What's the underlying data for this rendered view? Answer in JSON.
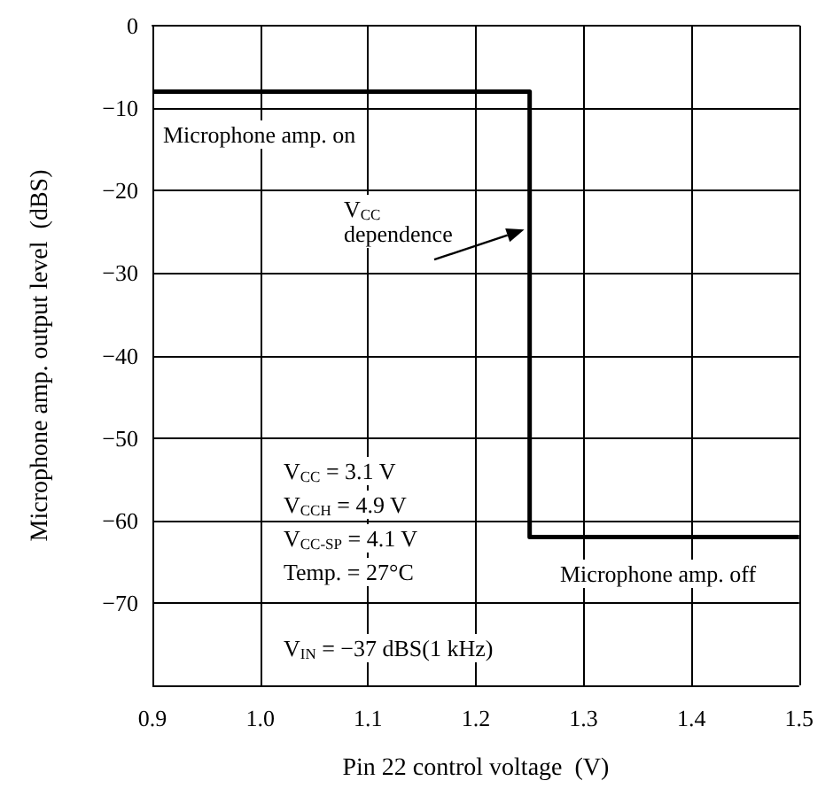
{
  "chart_data": {
    "type": "step",
    "xlabel": "Pin 22 control voltage  (V)",
    "ylabel": "Microphone amp. output level  (dBS)",
    "series": [
      {
        "x": [
          0.9,
          1.25,
          1.5
        ],
        "values": [
          -8,
          -62,
          -62
        ],
        "color": "#000000"
      }
    ],
    "xlim": [
      0.9,
      1.5
    ],
    "xticks": [
      0.9,
      {
        "value": 1,
        "label": "1.0"
      },
      1.1,
      1.2,
      1.3,
      1.4,
      1.5
    ],
    "ylim": [
      -80,
      0
    ],
    "yticks": [
      0,
      -10,
      -20,
      -30,
      -40,
      -50,
      -60,
      -70,
      {
        "value": -80,
        "label": null
      }
    ],
    "grid": true,
    "marker": "none",
    "line_style": "solid",
    "annotations": [
      "Microphone amp. on",
      "V$_{CC}$\ndependence",
      "Microphone amp. off",
      "V$_{CC}$ = 3.1 V",
      "V$_{CCH}$ = 4.9 V",
      "V$_{CC-SP}$ = 4.1 V",
      "Temp. = 27°C",
      "V$_{IN}$ = −37 dBS(1 kHz)"
    ]
  }
}
